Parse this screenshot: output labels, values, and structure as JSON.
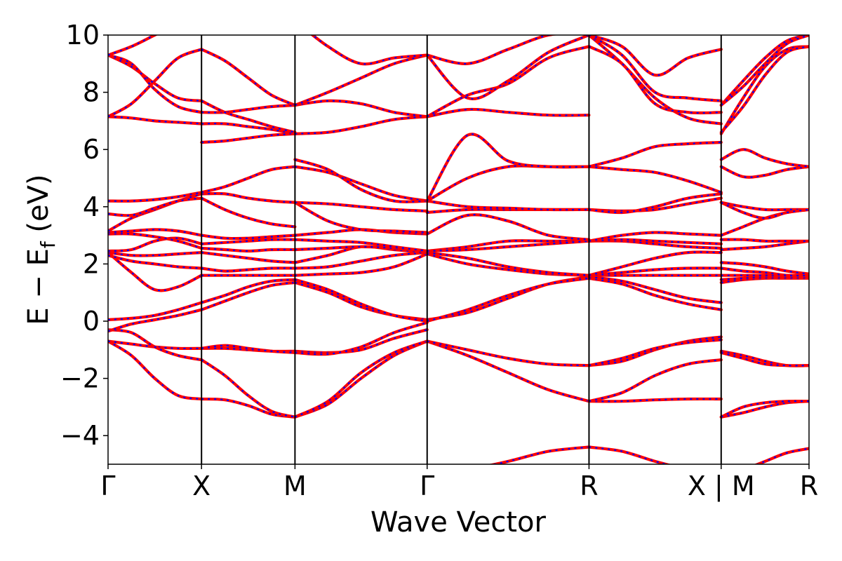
{
  "chart_data": {
    "type": "line",
    "title": "",
    "xlabel": "Wave Vector",
    "ylabel": "E − E",
    "ylabel_subscript": "f",
    "ylabel_unit": " (eV)",
    "ylim": [
      -5,
      10
    ],
    "yticks": [
      {
        "value": -4,
        "label": "−4"
      },
      {
        "value": -2,
        "label": "−2"
      },
      {
        "value": 0,
        "label": "0"
      },
      {
        "value": 2,
        "label": "2"
      },
      {
        "value": 4,
        "label": "4"
      },
      {
        "value": 6,
        "label": "6"
      },
      {
        "value": 8,
        "label": "8"
      },
      {
        "value": 10,
        "label": "10"
      }
    ],
    "xlim": [
      0,
      7.5
    ],
    "kpoints": [
      {
        "x": 0.0,
        "label": "Γ"
      },
      {
        "x": 1.0,
        "label": "X"
      },
      {
        "x": 2.0,
        "label": "M"
      },
      {
        "x": 3.414,
        "label": "Γ"
      },
      {
        "x": 5.146,
        "label": "R"
      },
      {
        "x": 6.56,
        "label": "X | M"
      },
      {
        "x": 7.5,
        "label": "R"
      }
    ],
    "grid": false,
    "colors": {
      "solid": "#ff0000",
      "dashed": "#0000ff"
    },
    "segments": [
      {
        "from": "Γ",
        "to": "X",
        "x0": 0.0,
        "x1": 1.0,
        "bands": [
          [
            -0.7,
            -1.2,
            -2.0,
            -2.6,
            -2.72
          ],
          [
            -0.7,
            -0.8,
            -0.9,
            -0.95,
            -0.95
          ],
          [
            -0.3,
            -0.4,
            -0.9,
            -1.2,
            -1.35
          ],
          [
            -0.35,
            -0.1,
            0.05,
            0.2,
            0.4
          ],
          [
            0.05,
            0.1,
            0.2,
            0.4,
            0.65
          ],
          [
            2.4,
            1.7,
            1.1,
            1.2,
            1.6
          ],
          [
            2.3,
            2.1,
            2.0,
            1.9,
            1.85
          ],
          [
            2.4,
            2.3,
            2.3,
            2.35,
            2.4
          ],
          [
            2.45,
            2.5,
            2.8,
            2.9,
            2.7
          ],
          [
            3.05,
            3.05,
            2.95,
            2.8,
            2.55
          ],
          [
            3.1,
            3.15,
            3.2,
            3.15,
            3.0
          ],
          [
            3.15,
            3.6,
            3.9,
            4.2,
            4.45
          ],
          [
            3.75,
            3.7,
            3.95,
            4.2,
            4.3
          ],
          [
            4.2,
            4.2,
            4.25,
            4.35,
            4.5
          ],
          [
            7.15,
            7.1,
            7.0,
            6.95,
            6.9
          ],
          [
            7.15,
            7.6,
            8.4,
            9.2,
            9.5
          ],
          [
            9.3,
            8.9,
            8.3,
            7.8,
            7.7
          ],
          [
            9.3,
            9.0,
            8.1,
            7.5,
            7.3
          ],
          [
            9.3,
            9.6,
            10.0,
            10.4,
            10.6
          ]
        ]
      },
      {
        "from": "X",
        "to": "M",
        "x0": 1.0,
        "x1": 2.0,
        "bands": [
          [
            -2.72,
            -2.75,
            -2.95,
            -3.25,
            -3.35
          ],
          [
            -1.35,
            -1.9,
            -2.6,
            -3.15,
            -3.35
          ],
          [
            -0.95,
            -0.95,
            -1.0,
            -1.05,
            -1.05
          ],
          [
            -0.95,
            -0.85,
            -0.95,
            -1.05,
            -1.1
          ],
          [
            0.4,
            0.7,
            1.0,
            1.25,
            1.35
          ],
          [
            0.65,
            0.9,
            1.2,
            1.4,
            1.45
          ],
          [
            1.6,
            1.6,
            1.6,
            1.6,
            1.6
          ],
          [
            1.85,
            1.75,
            1.8,
            1.85,
            1.85
          ],
          [
            2.4,
            2.3,
            2.2,
            2.1,
            2.05
          ],
          [
            2.55,
            2.5,
            2.45,
            2.5,
            2.5
          ],
          [
            2.7,
            2.75,
            2.8,
            2.85,
            2.85
          ],
          [
            3.0,
            2.9,
            2.9,
            2.95,
            3.0
          ],
          [
            4.3,
            3.9,
            3.6,
            3.4,
            3.3
          ],
          [
            4.45,
            4.45,
            4.3,
            4.2,
            4.15
          ],
          [
            4.5,
            4.7,
            5.0,
            5.3,
            5.4
          ],
          [
            6.25,
            6.3,
            6.4,
            6.5,
            6.55
          ],
          [
            6.9,
            6.9,
            6.8,
            6.7,
            6.55
          ],
          [
            7.3,
            7.3,
            7.4,
            7.5,
            7.55
          ],
          [
            7.7,
            7.3,
            7.05,
            6.8,
            6.6
          ],
          [
            9.5,
            9.1,
            8.5,
            7.9,
            7.55
          ]
        ]
      },
      {
        "from": "M",
        "to": "Γ",
        "x0": 2.0,
        "x1": 3.414,
        "bands": [
          [
            -3.35,
            -2.9,
            -2.0,
            -1.2,
            -0.7
          ],
          [
            -3.35,
            -2.8,
            -1.8,
            -1.1,
            -0.7
          ],
          [
            -1.05,
            -1.1,
            -1.0,
            -0.6,
            -0.3
          ],
          [
            -1.1,
            -1.15,
            -0.9,
            -0.4,
            -0.05
          ],
          [
            1.35,
            1.0,
            0.5,
            0.2,
            0.05
          ],
          [
            1.45,
            1.1,
            0.6,
            0.2,
            0.0
          ],
          [
            1.6,
            1.65,
            1.7,
            1.9,
            2.35
          ],
          [
            1.85,
            1.9,
            2.1,
            2.3,
            2.4
          ],
          [
            2.05,
            2.3,
            2.6,
            2.5,
            2.4
          ],
          [
            2.5,
            2.55,
            2.6,
            2.55,
            2.45
          ],
          [
            2.85,
            2.8,
            2.75,
            2.6,
            2.45
          ],
          [
            3.0,
            3.1,
            3.2,
            3.1,
            3.05
          ],
          [
            4.15,
            3.5,
            3.2,
            3.15,
            3.1
          ],
          [
            4.15,
            4.1,
            4.0,
            3.9,
            3.85
          ],
          [
            5.4,
            5.2,
            4.8,
            4.4,
            4.2
          ],
          [
            5.65,
            5.3,
            4.6,
            4.2,
            4.2
          ],
          [
            6.55,
            6.6,
            6.8,
            7.05,
            7.15
          ],
          [
            7.55,
            7.7,
            7.6,
            7.3,
            7.15
          ],
          [
            7.55,
            8.0,
            8.5,
            9.0,
            9.3
          ],
          [
            10.5,
            9.6,
            9.0,
            9.2,
            9.3
          ]
        ]
      },
      {
        "from": "Γ",
        "to": "R",
        "x0": 3.414,
        "x1": 5.146,
        "bands": [
          [
            -0.7,
            -1.2,
            -1.8,
            -2.4,
            -2.8
          ],
          [
            -0.7,
            -1.0,
            -1.3,
            -1.5,
            -1.55
          ],
          [
            0.05,
            0.3,
            0.8,
            1.3,
            1.55
          ],
          [
            0.0,
            0.4,
            0.9,
            1.3,
            1.5
          ],
          [
            2.35,
            2.0,
            1.8,
            1.65,
            1.6
          ],
          [
            2.4,
            2.2,
            1.9,
            1.7,
            1.6
          ],
          [
            2.45,
            2.6,
            2.8,
            2.8,
            2.8
          ],
          [
            2.45,
            2.5,
            2.6,
            2.7,
            2.8
          ],
          [
            3.05,
            3.7,
            3.5,
            3.0,
            2.85
          ],
          [
            3.8,
            3.9,
            3.9,
            3.9,
            3.9
          ],
          [
            4.2,
            4.0,
            3.95,
            3.9,
            3.9
          ],
          [
            4.2,
            5.0,
            5.4,
            5.4,
            5.4
          ],
          [
            4.2,
            6.5,
            5.6,
            5.4,
            5.4
          ],
          [
            7.15,
            7.4,
            7.3,
            7.2,
            7.2
          ],
          [
            7.15,
            7.9,
            8.3,
            9.2,
            9.6
          ],
          [
            9.3,
            7.8,
            8.4,
            9.4,
            10.0
          ],
          [
            9.3,
            9.0,
            9.5,
            10.0,
            10.1
          ]
        ]
      },
      {
        "from": "R",
        "to": "X",
        "x0": 5.146,
        "x1": 6.56,
        "bands": [
          [
            -2.8,
            -2.8,
            -2.75,
            -2.72,
            -2.72
          ],
          [
            -2.8,
            -2.5,
            -1.9,
            -1.5,
            -1.35
          ],
          [
            -1.55,
            -1.4,
            -1.0,
            -0.7,
            -0.55
          ],
          [
            -1.55,
            -1.3,
            -0.95,
            -0.75,
            -0.65
          ],
          [
            1.5,
            1.3,
            0.9,
            0.6,
            0.4
          ],
          [
            1.55,
            1.4,
            1.1,
            0.8,
            0.65
          ],
          [
            1.6,
            1.6,
            1.6,
            1.6,
            1.6
          ],
          [
            1.6,
            1.7,
            1.8,
            1.85,
            1.85
          ],
          [
            1.6,
            1.9,
            2.2,
            2.4,
            2.4
          ],
          [
            2.8,
            2.8,
            2.7,
            2.6,
            2.55
          ],
          [
            2.8,
            2.85,
            2.8,
            2.75,
            2.7
          ],
          [
            2.8,
            3.0,
            3.1,
            3.05,
            3.0
          ],
          [
            3.9,
            3.85,
            3.9,
            4.1,
            4.3
          ],
          [
            3.9,
            3.8,
            4.0,
            4.3,
            4.45
          ],
          [
            5.4,
            5.3,
            5.2,
            4.9,
            4.5
          ],
          [
            5.4,
            5.7,
            6.1,
            6.2,
            6.25
          ],
          [
            10.0,
            9.0,
            7.8,
            7.1,
            6.9
          ],
          [
            9.6,
            9.0,
            7.6,
            7.3,
            7.3
          ],
          [
            10.0,
            9.3,
            8.0,
            7.8,
            7.7
          ],
          [
            10.0,
            9.6,
            8.6,
            9.2,
            9.5
          ]
        ]
      },
      {
        "from": "M",
        "to": "R",
        "x0": 6.56,
        "x1": 7.5,
        "bands": [
          [
            -3.35,
            -3.2,
            -3.0,
            -2.85,
            -2.8
          ],
          [
            -3.35,
            -3.0,
            -2.85,
            -2.8,
            -2.8
          ],
          [
            -1.05,
            -1.2,
            -1.4,
            -1.55,
            -1.55
          ],
          [
            -1.1,
            -1.3,
            -1.5,
            -1.55,
            -1.55
          ],
          [
            1.35,
            1.45,
            1.5,
            1.5,
            1.5
          ],
          [
            1.45,
            1.5,
            1.55,
            1.55,
            1.55
          ],
          [
            1.6,
            1.6,
            1.6,
            1.6,
            1.6
          ],
          [
            1.85,
            1.75,
            1.7,
            1.6,
            1.6
          ],
          [
            2.05,
            2.0,
            1.9,
            1.75,
            1.65
          ],
          [
            2.5,
            2.55,
            2.6,
            2.7,
            2.8
          ],
          [
            2.85,
            2.85,
            2.8,
            2.8,
            2.8
          ],
          [
            3.0,
            3.3,
            3.6,
            3.8,
            3.9
          ],
          [
            4.15,
            4.0,
            3.9,
            3.9,
            3.9
          ],
          [
            4.15,
            3.8,
            3.6,
            3.8,
            3.9
          ],
          [
            5.4,
            5.05,
            5.1,
            5.3,
            5.4
          ],
          [
            5.65,
            6.0,
            5.7,
            5.5,
            5.4
          ],
          [
            6.55,
            7.8,
            8.9,
            9.5,
            9.6
          ],
          [
            6.6,
            7.5,
            8.6,
            9.4,
            9.6
          ],
          [
            7.55,
            8.4,
            9.2,
            9.8,
            10.0
          ],
          [
            7.55,
            8.2,
            9.0,
            9.7,
            10.0
          ]
        ]
      },
      {
        "from": "R",
        "to": "Γ",
        "x0": 5.146,
        "x1": 3.414,
        "bands": [
          [
            -4.4,
            -4.55,
            -4.9,
            -5.2,
            -5.5
          ]
        ]
      },
      {
        "from": "R",
        "to": "X",
        "x0": 5.146,
        "x1": 6.56,
        "bands": [
          [
            -4.4,
            -4.55,
            -4.9,
            -5.2,
            -5.5
          ]
        ]
      },
      {
        "from": "M",
        "to": "R",
        "x0": 6.56,
        "x1": 7.5,
        "bands": [
          [
            -5.5,
            -5.2,
            -4.9,
            -4.6,
            -4.45
          ]
        ]
      }
    ]
  }
}
